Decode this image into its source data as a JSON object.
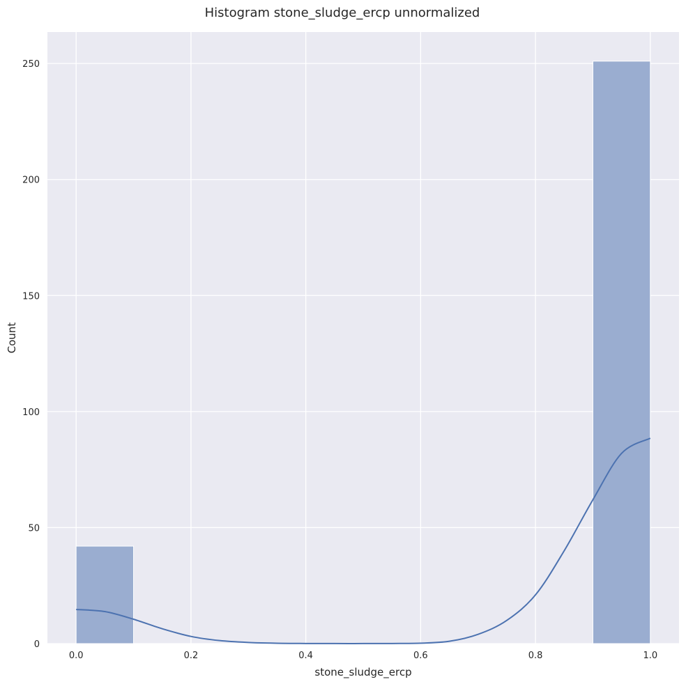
{
  "chart_data": {
    "type": "bar",
    "title": "Histogram stone_sludge_ercp unnormalized",
    "xlabel": "stone_sludge_ercp",
    "ylabel": "Count",
    "xlim": [
      -0.05,
      1.05
    ],
    "ylim": [
      0,
      263.55
    ],
    "x_ticks": [
      0.0,
      0.2,
      0.4,
      0.6,
      0.8,
      1.0
    ],
    "x_tick_labels": [
      "0.0",
      "0.2",
      "0.4",
      "0.6",
      "0.8",
      "1.0"
    ],
    "y_ticks": [
      0,
      50,
      100,
      150,
      200,
      250
    ],
    "y_tick_labels": [
      "0",
      "50",
      "100",
      "150",
      "200",
      "250"
    ],
    "grid": true,
    "bins": [
      {
        "x0": 0.0,
        "x1": 0.1,
        "count": 42
      },
      {
        "x0": 0.1,
        "x1": 0.2,
        "count": 0
      },
      {
        "x0": 0.2,
        "x1": 0.3,
        "count": 0
      },
      {
        "x0": 0.3,
        "x1": 0.4,
        "count": 0
      },
      {
        "x0": 0.4,
        "x1": 0.5,
        "count": 0
      },
      {
        "x0": 0.5,
        "x1": 0.6,
        "count": 0
      },
      {
        "x0": 0.6,
        "x1": 0.7,
        "count": 0
      },
      {
        "x0": 0.7,
        "x1": 0.8,
        "count": 0
      },
      {
        "x0": 0.8,
        "x1": 0.9,
        "count": 0
      },
      {
        "x0": 0.9,
        "x1": 1.0,
        "count": 251
      }
    ],
    "kde": {
      "x": [
        0.0,
        0.05,
        0.1,
        0.15,
        0.2,
        0.25,
        0.3,
        0.35,
        0.4,
        0.45,
        0.5,
        0.55,
        0.6,
        0.65,
        0.7,
        0.75,
        0.8,
        0.85,
        0.9,
        0.95,
        1.0
      ],
      "y": [
        14.7,
        13.8,
        10.5,
        6.4,
        3.1,
        1.3,
        0.5,
        0.15,
        0.05,
        0.02,
        0.02,
        0.05,
        0.2,
        1.0,
        4.0,
        10.0,
        21.0,
        40.0,
        62.0,
        82.0,
        88.5
      ]
    },
    "colors": {
      "background": "#eaeaf2",
      "grid": "#ffffff",
      "bar_fill": "#9aadd0",
      "bar_edge": "#ffffff",
      "kde_line": "#4c72b0"
    }
  }
}
